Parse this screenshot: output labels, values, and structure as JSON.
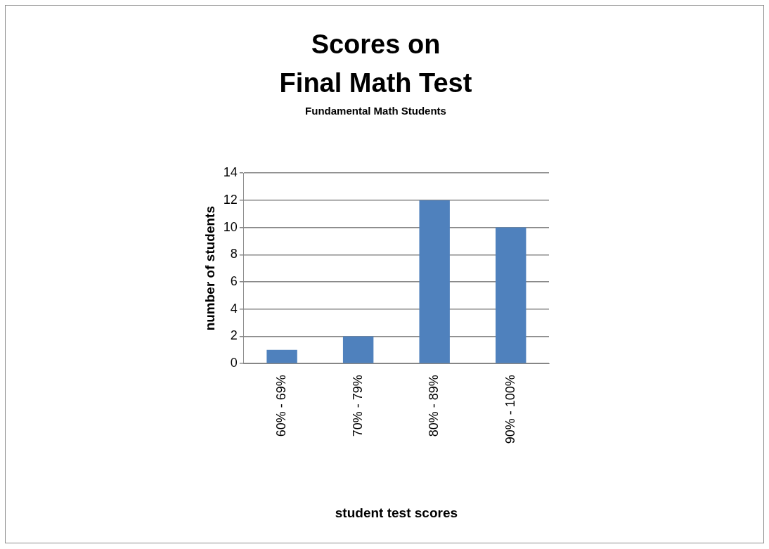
{
  "chart_data": {
    "type": "bar",
    "title": "Scores on\nFinal Math Test",
    "subtitle": "Fundamental Math Students",
    "x_label": "student test scores",
    "y_label": "number of students",
    "categories": [
      "60% - 69%",
      "70% - 79%",
      "80% - 89%",
      "90% - 100%"
    ],
    "values": [
      1,
      2,
      12,
      10
    ],
    "color": "#4f81bd",
    "ylim": [
      0,
      14
    ],
    "yticks": [
      0,
      2,
      4,
      6,
      8,
      10,
      12,
      14
    ],
    "grid": true
  }
}
